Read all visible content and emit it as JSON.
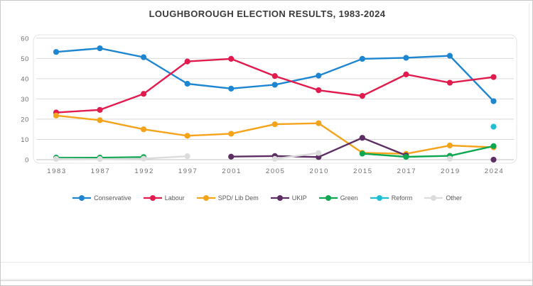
{
  "chart_data": {
    "type": "line",
    "title": "LOUGHBOROUGH ELECTION RESULTS, 1983-2024",
    "xlabel": "",
    "ylabel": "",
    "categories": [
      "1983",
      "1987",
      "1992",
      "1997",
      "2001",
      "2005",
      "2010",
      "2015",
      "2017",
      "2019",
      "2024"
    ],
    "ylim": [
      0,
      60
    ],
    "ytick_step": 10,
    "grid": true,
    "legend_position": "bottom",
    "axis_colors": {
      "gridline": "#d9d9d9",
      "axis_line": "#bfbfbf",
      "tick_text": "#6e6e6e"
    },
    "series": [
      {
        "name": "Conservative",
        "color": "#1E86D0",
        "values": [
          53.2,
          55,
          50.6,
          37.5,
          35.1,
          37,
          41.5,
          49.8,
          50.3,
          51.3,
          28.9
        ]
      },
      {
        "name": "Labour",
        "color": "#E11B4D",
        "values": [
          23.3,
          24.6,
          32.5,
          48.5,
          49.8,
          41.3,
          34.3,
          31.5,
          42.1,
          38,
          40.8
        ]
      },
      {
        "name": "SPD/ Lib Dem",
        "color": "#F5A31B",
        "values": [
          21.8,
          19.5,
          15,
          11.8,
          12.8,
          17.5,
          18,
          3.4,
          2.9,
          7,
          6.1
        ]
      },
      {
        "name": "UKIP",
        "color": "#5C2E63",
        "values": [
          null,
          null,
          null,
          null,
          1.5,
          1.8,
          1.3,
          10.8,
          2.1,
          null,
          0
        ]
      },
      {
        "name": "Green",
        "color": "#0CA750",
        "values": [
          1,
          1,
          1.3,
          null,
          null,
          null,
          null,
          3,
          1.4,
          1.9,
          6.7
        ]
      },
      {
        "name": "Reform",
        "color": "#1FBFD3",
        "values": [
          null,
          null,
          null,
          null,
          null,
          null,
          null,
          null,
          null,
          null,
          16.3
        ]
      },
      {
        "name": "Other",
        "color": "#DCDCDC",
        "values": [
          0.4,
          0.3,
          0.5,
          1.7,
          null,
          0.4,
          3.3,
          null,
          null,
          0.5,
          null
        ]
      }
    ]
  }
}
